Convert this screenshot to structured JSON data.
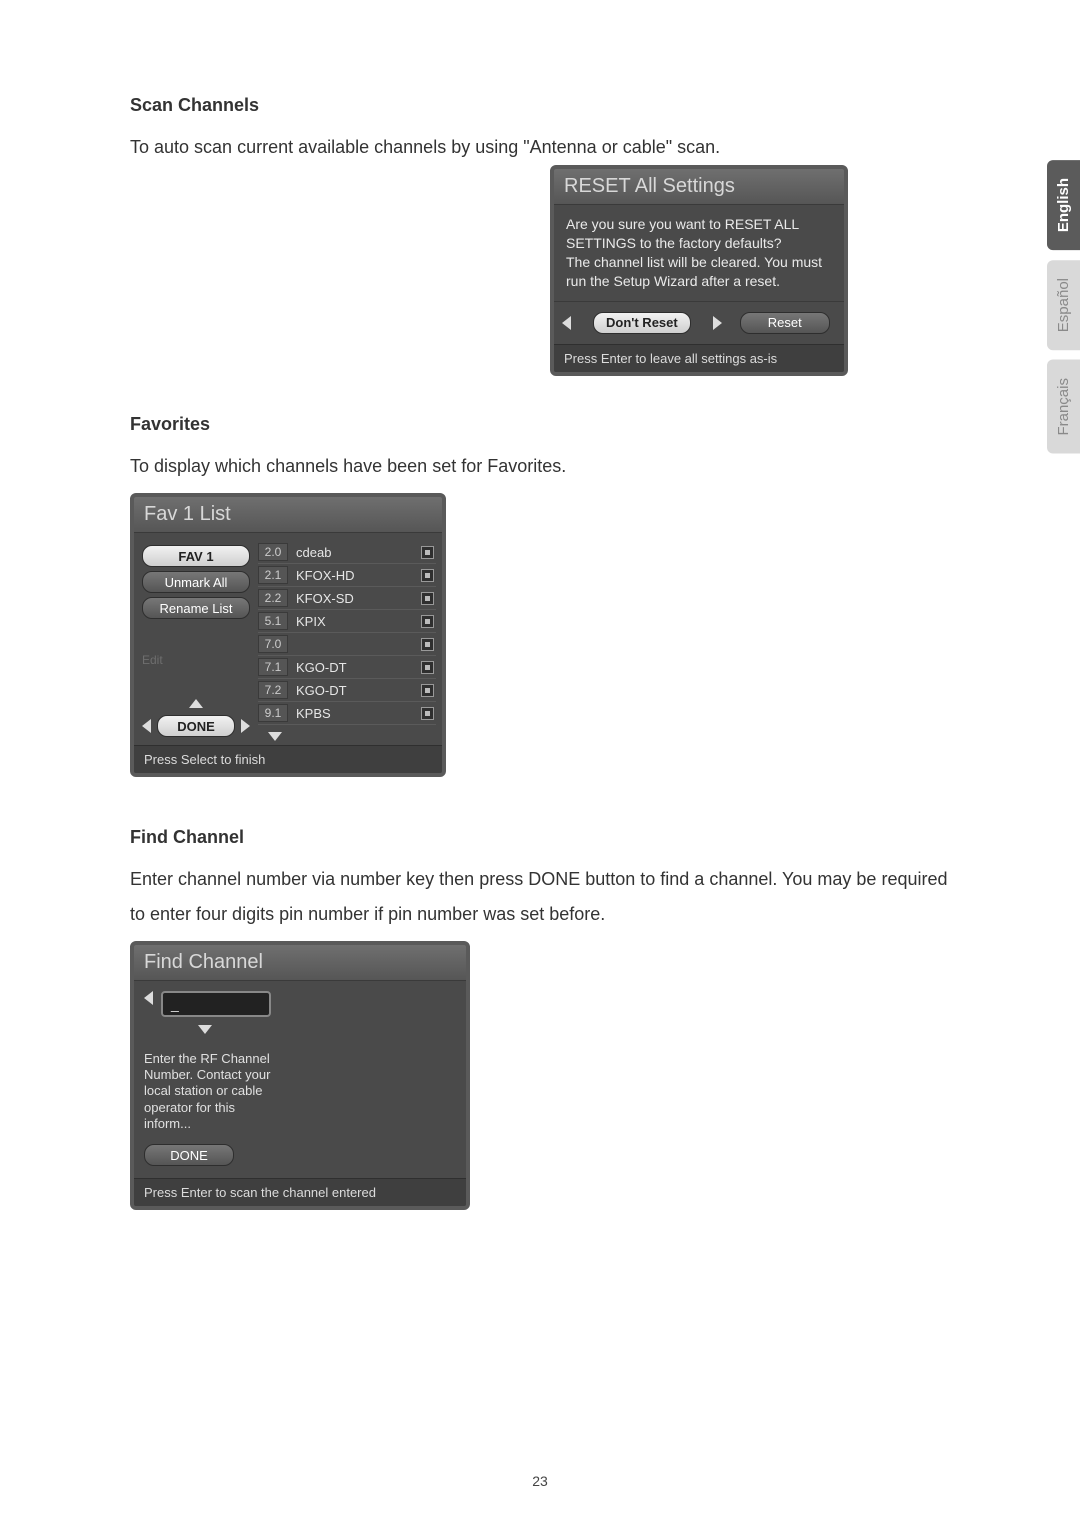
{
  "page_number": "23",
  "lang_tabs": [
    {
      "label": "English",
      "active": true
    },
    {
      "label": "Español",
      "active": false
    },
    {
      "label": "Français",
      "active": false
    }
  ],
  "scan": {
    "heading": "Scan Channels",
    "text": "To auto scan current available channels by using \"Antenna or cable\" scan."
  },
  "reset_dialog": {
    "title": "RESET All Settings",
    "body_line1": "Are you sure you want to RESET ALL SETTINGS to the factory defaults?",
    "body_line2": "The channel list will be cleared. You must run the Setup Wizard after a reset.",
    "btn_dont_reset": "Don't Reset",
    "btn_reset": "Reset",
    "footer": "Press Enter to leave all settings as-is"
  },
  "favorites": {
    "heading": "Favorites",
    "text": "To display which channels have been set for Favorites.",
    "panel_title": "Fav 1 List",
    "left_buttons": {
      "fav1": "FAV 1",
      "unmark_all": "Unmark All",
      "rename_list": "Rename List",
      "edit_label": "Edit",
      "done": "DONE"
    },
    "channels": [
      {
        "num": "2.0",
        "name": "cdeab"
      },
      {
        "num": "2.1",
        "name": "KFOX-HD"
      },
      {
        "num": "2.2",
        "name": "KFOX-SD"
      },
      {
        "num": "5.1",
        "name": "KPIX"
      },
      {
        "num": "7.0",
        "name": ""
      },
      {
        "num": "7.1",
        "name": "KGO-DT"
      },
      {
        "num": "7.2",
        "name": "KGO-DT"
      },
      {
        "num": "9.1",
        "name": "KPBS"
      }
    ],
    "footer": "Press Select to finish"
  },
  "find_channel": {
    "heading": "Find Channel",
    "text": "Enter channel number via number key then press DONE button to find a channel. You may be required to enter four digits pin number if pin number was set before.",
    "panel_title": "Find Channel",
    "input_value": "_",
    "help_text": "Enter the RF Channel Number. Contact your local station or cable operator for this inform...",
    "done": "DONE",
    "footer": "Press Enter to scan the channel entered"
  }
}
